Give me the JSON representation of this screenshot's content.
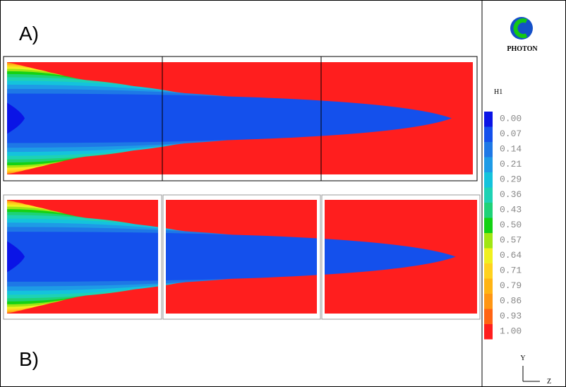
{
  "panels": {
    "a": {
      "label": "A)"
    },
    "b": {
      "label": "B)"
    }
  },
  "logo": {
    "text": "PHOTON"
  },
  "legend": {
    "title": "H1",
    "levels": [
      "0.00",
      "0.07",
      "0.14",
      "0.21",
      "0.29",
      "0.36",
      "0.43",
      "0.50",
      "0.57",
      "0.64",
      "0.71",
      "0.79",
      "0.86",
      "0.93",
      "1.00"
    ],
    "colors": [
      "#0a14e6",
      "#1450ec",
      "#1e78e6",
      "#1e9be6",
      "#14c3dc",
      "#1ed2b4",
      "#1ed278",
      "#14d214",
      "#a0e614",
      "#f0f01e",
      "#ffd21e",
      "#ffb414",
      "#ff9614",
      "#ff6414",
      "#ff1e1e"
    ]
  },
  "axes": {
    "y": "Y",
    "z": "Z"
  }
}
